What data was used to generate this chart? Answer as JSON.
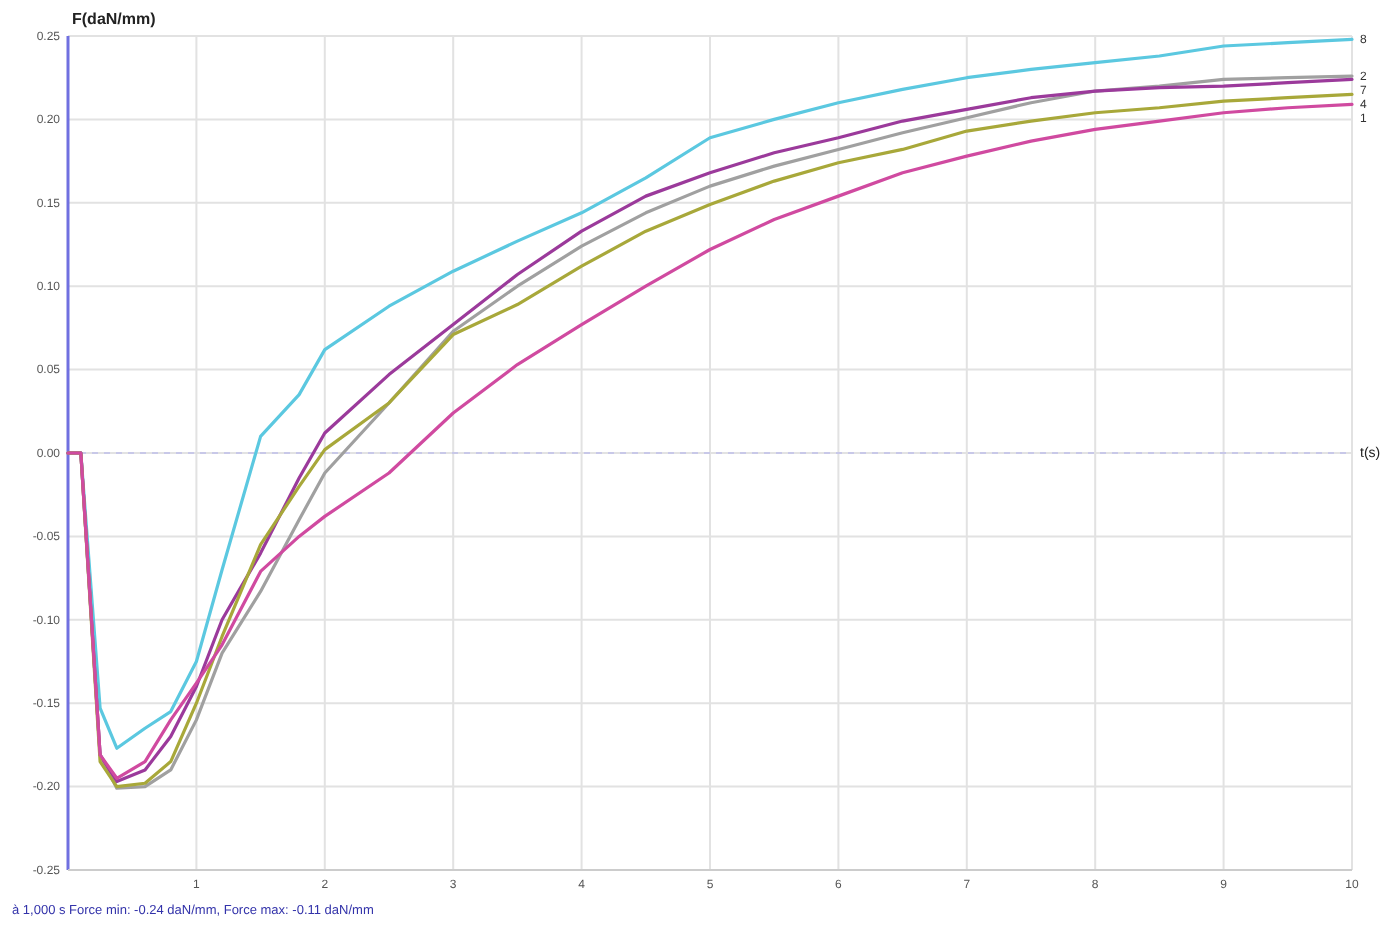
{
  "chart_data": {
    "type": "line",
    "ylabel": "F(daN/mm)",
    "xlabel": "t(s)",
    "annotations": [
      "à 1,000 s Force min: -0.24 daN/mm, Force max: -0.11 daN/mm"
    ],
    "xlim": [
      0,
      10
    ],
    "ylim": [
      -0.25,
      0.25
    ],
    "xticks": [
      1,
      2,
      3,
      4,
      5,
      6,
      7,
      8,
      9,
      10
    ],
    "yticks": [
      {
        "value": -0.25,
        "label": "-0.25"
      },
      {
        "value": -0.2,
        "label": "-0.20"
      },
      {
        "value": -0.15,
        "label": "-0.15"
      },
      {
        "value": -0.1,
        "label": "-0.10"
      },
      {
        "value": -0.05,
        "label": "-0.05"
      },
      {
        "value": 0,
        "label": "0.00"
      },
      {
        "value": 0.05,
        "label": "0.05"
      },
      {
        "value": 0.1,
        "label": "0.10"
      },
      {
        "value": 0.15,
        "label": "0.15"
      },
      {
        "value": 0.2,
        "label": "0.20"
      },
      {
        "value": 0.25,
        "label": "0.25"
      }
    ],
    "grid": true,
    "legend": false,
    "ref_lines": [
      {
        "axis": "y",
        "value": 0,
        "color": "#c8c8e8",
        "line_style": "dashed"
      }
    ],
    "marker": "none",
    "line_style": "solid",
    "x": [
      0,
      0.1,
      0.25,
      0.38,
      0.6,
      0.8,
      1,
      1.2,
      1.5,
      1.8,
      2,
      2.5,
      3,
      3.5,
      4,
      4.5,
      5,
      5.5,
      6,
      6.5,
      7,
      7.5,
      8,
      8.5,
      9,
      9.5,
      10
    ],
    "series": [
      {
        "name": "8",
        "color": "#5bc8e0",
        "values": [
          0,
          0,
          -0.153,
          -0.177,
          -0.165,
          -0.155,
          -0.125,
          -0.07,
          0.01,
          0.035,
          0.062,
          0.088,
          0.109,
          0.127,
          0.144,
          0.165,
          0.189,
          0.2,
          0.21,
          0.218,
          0.225,
          0.23,
          0.234,
          0.238,
          0.244,
          0.246,
          0.248
        ]
      },
      {
        "name": "2",
        "color": "#a0a0a0",
        "values": [
          0,
          0,
          -0.181,
          -0.201,
          -0.2,
          -0.19,
          -0.16,
          -0.12,
          -0.083,
          -0.04,
          -0.012,
          0.03,
          0.073,
          0.1,
          0.124,
          0.144,
          0.16,
          0.172,
          0.182,
          0.192,
          0.201,
          0.21,
          0.217,
          0.22,
          0.224,
          0.225,
          0.226
        ]
      },
      {
        "name": "7",
        "color": "#9b3a9b",
        "values": [
          0,
          0,
          -0.181,
          -0.197,
          -0.19,
          -0.17,
          -0.14,
          -0.1,
          -0.06,
          -0.015,
          0.012,
          0.047,
          0.077,
          0.107,
          0.133,
          0.154,
          0.168,
          0.18,
          0.189,
          0.199,
          0.206,
          0.213,
          0.217,
          0.219,
          0.22,
          0.222,
          0.224
        ]
      },
      {
        "name": "4",
        "color": "#a8a83a",
        "values": [
          0,
          0,
          -0.185,
          -0.2,
          -0.198,
          -0.185,
          -0.15,
          -0.11,
          -0.055,
          -0.02,
          0.002,
          0.03,
          0.071,
          0.089,
          0.112,
          0.133,
          0.149,
          0.163,
          0.174,
          0.182,
          0.193,
          0.199,
          0.204,
          0.207,
          0.211,
          0.213,
          0.215
        ]
      },
      {
        "name": "1",
        "color": "#d04aa0",
        "values": [
          0,
          0,
          -0.181,
          -0.195,
          -0.185,
          -0.16,
          -0.138,
          -0.115,
          -0.071,
          -0.05,
          -0.038,
          -0.012,
          0.024,
          0.053,
          0.077,
          0.1,
          0.122,
          0.14,
          0.154,
          0.168,
          0.178,
          0.187,
          0.194,
          0.199,
          0.204,
          0.207,
          0.209
        ]
      }
    ]
  }
}
